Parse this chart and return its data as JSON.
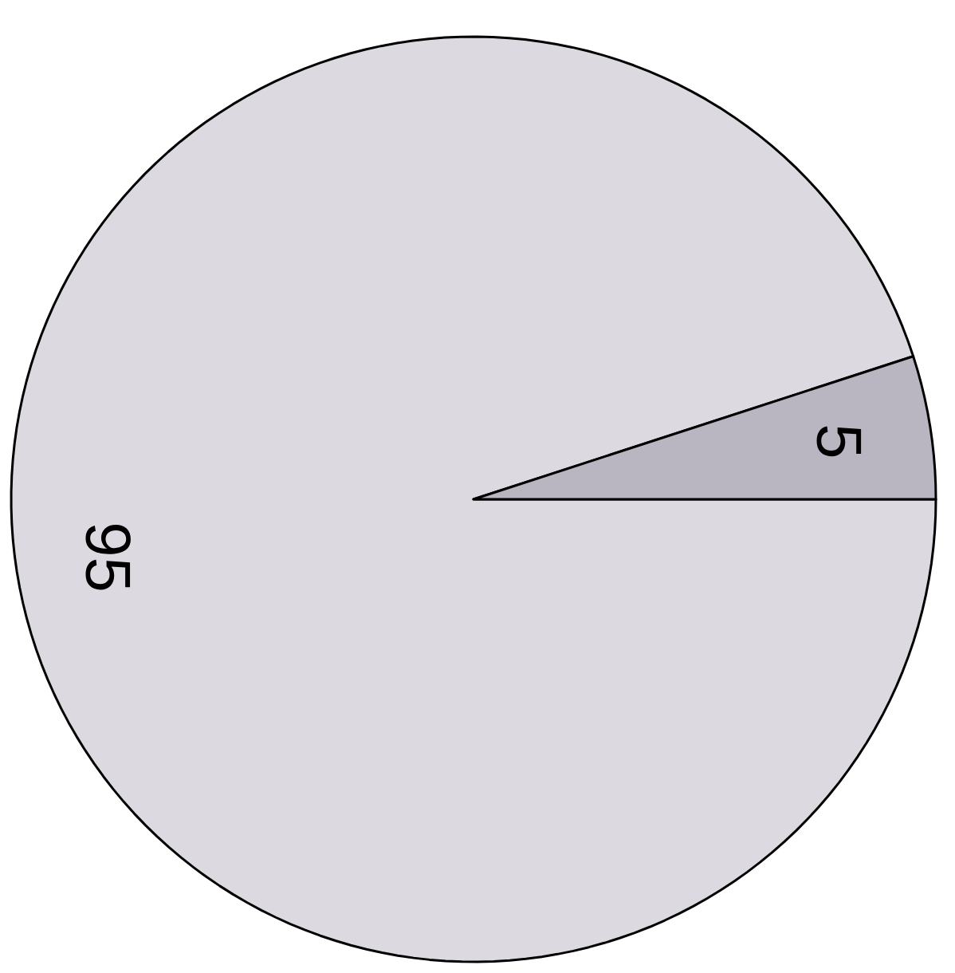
{
  "chart_data": {
    "type": "pie",
    "categories": [
      null,
      null
    ],
    "values": [
      95,
      5
    ],
    "colors": [
      "#dcd9e0",
      "#b9b5c1"
    ],
    "data_labels": true
  }
}
